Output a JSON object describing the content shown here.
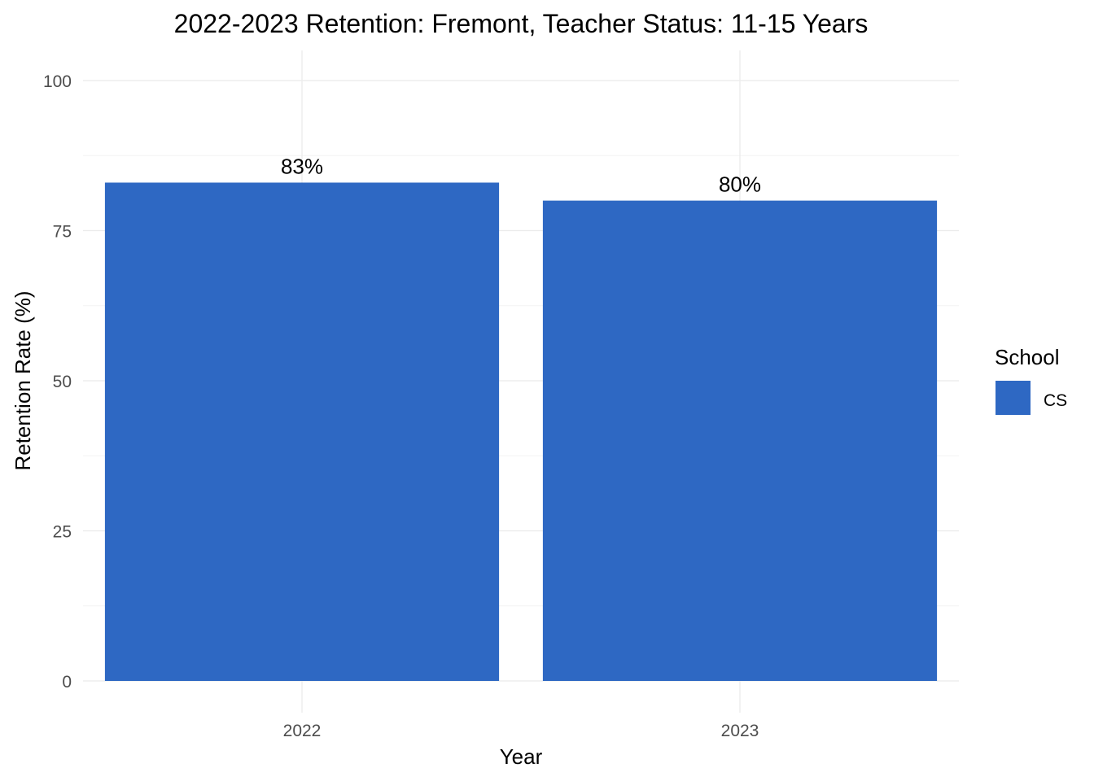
{
  "chart_data": {
    "type": "bar",
    "title": "2022-2023 Retention: Fremont, Teacher Status: 11-15 Years",
    "xlabel": "Year",
    "ylabel": "Retention Rate (%)",
    "categories": [
      "2022",
      "2023"
    ],
    "series": [
      {
        "name": "CS",
        "values": [
          83,
          80
        ],
        "color": "#2e68c3"
      }
    ],
    "data_labels": [
      "83%",
      "80%"
    ],
    "ylim": [
      0,
      100
    ],
    "y_ticks": [
      0,
      25,
      50,
      75,
      100
    ],
    "y_tick_labels": [
      "0",
      "25",
      "50",
      "75",
      "100"
    ],
    "grid": true,
    "legend": {
      "title": "School",
      "position": "right"
    }
  }
}
